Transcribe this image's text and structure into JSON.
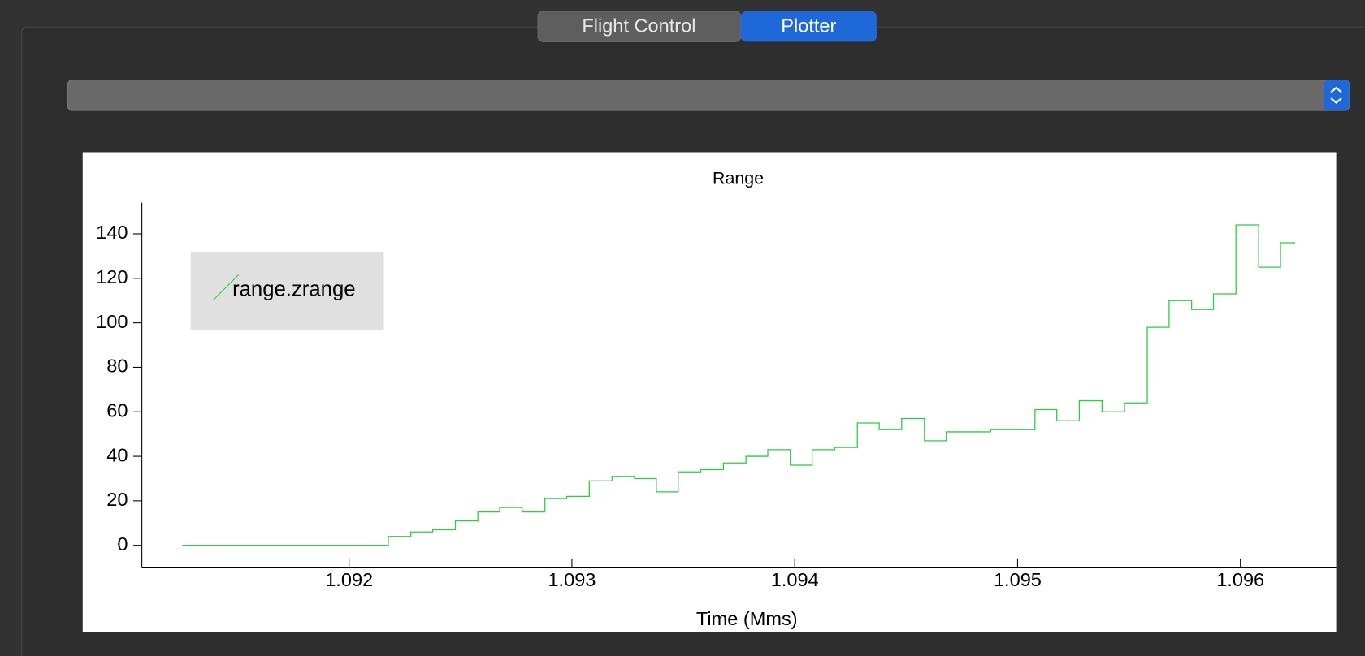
{
  "tabs": [
    "Flight Control",
    "Plotter"
  ],
  "chart_data": {
    "type": "line",
    "title": "Range",
    "x_label": "Time (Mms)",
    "step": true,
    "grid": false,
    "legend_position": "upper left",
    "x": [
      1.091254,
      1.092176,
      1.092277,
      1.092375,
      1.092477,
      1.092578,
      1.092676,
      1.092777,
      1.092879,
      1.092977,
      1.093078,
      1.09318,
      1.093281,
      1.093379,
      1.093477,
      1.093578,
      1.09368,
      1.093781,
      1.093879,
      1.09398,
      1.094078,
      1.09418,
      1.094281,
      1.094379,
      1.09448,
      1.094582,
      1.09468,
      1.094879,
      1.095078,
      1.095176,
      1.095277,
      1.095379,
      1.09548,
      1.095582,
      1.09568,
      1.095781,
      1.095879,
      1.09598,
      1.096082,
      1.09618,
      1.096242
    ],
    "series": [
      {
        "name": "range.zrange",
        "color": "#2ecc40",
        "values": [
          0,
          4,
          6,
          7,
          11,
          15,
          17,
          15,
          21,
          22,
          29,
          31,
          30,
          24,
          33,
          34,
          37,
          40,
          43,
          36,
          43,
          44,
          55,
          52,
          57,
          47,
          51,
          52,
          61,
          56,
          65,
          60,
          64,
          98,
          110,
          106,
          113,
          144,
          125,
          136,
          136
        ]
      }
    ],
    "xlim": [
      1.09107,
      1.09643
    ],
    "xticks": [
      1.092,
      1.093,
      1.094,
      1.095,
      1.096
    ],
    "ylim": [
      -9.8,
      154
    ],
    "yticks": [
      0,
      20,
      40,
      60,
      80,
      100,
      120,
      140
    ]
  }
}
